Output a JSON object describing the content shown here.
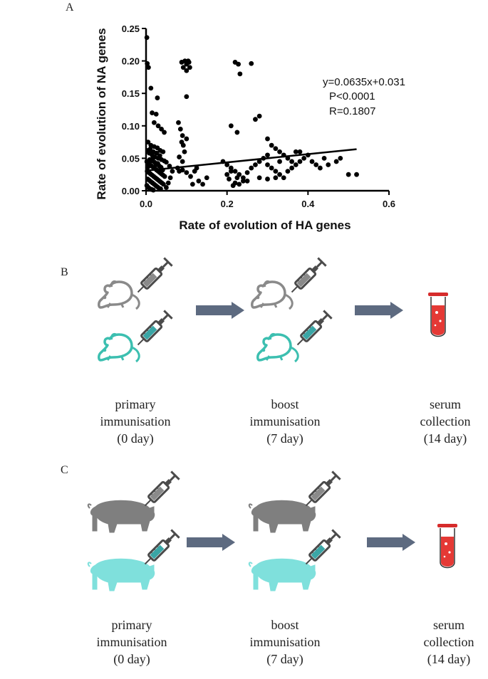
{
  "panels": {
    "a_label": "A",
    "b_label": "B",
    "c_label": "C"
  },
  "chart_data": {
    "type": "scatter",
    "xlabel": "Rate of evolution of HA genes",
    "ylabel": "Rate of evolution of NA genes",
    "xlim": [
      0,
      0.6
    ],
    "ylim": [
      0,
      0.25
    ],
    "xticks": [
      "0.0",
      "0.2",
      "0.4",
      "0.6"
    ],
    "yticks": [
      "0.00",
      "0.05",
      "0.10",
      "0.15",
      "0.20",
      "0.25"
    ],
    "xtick_values": [
      0,
      0.2,
      0.4,
      0.6
    ],
    "ytick_values": [
      0,
      0.05,
      0.1,
      0.15,
      0.2,
      0.25
    ],
    "regression": {
      "slope": 0.0635,
      "intercept": 0.031,
      "x_range": [
        0,
        0.52
      ]
    },
    "annotation": [
      "y=0.0635x+0.031",
      "P<0.0001",
      "R=0.1807"
    ],
    "points": [
      [
        0.002,
        0.236
      ],
      [
        0.003,
        0.196
      ],
      [
        0.006,
        0.19
      ],
      [
        0.012,
        0.158
      ],
      [
        0.028,
        0.143
      ],
      [
        0.015,
        0.12
      ],
      [
        0.025,
        0.118
      ],
      [
        0.02,
        0.105
      ],
      [
        0.03,
        0.1
      ],
      [
        0.038,
        0.095
      ],
      [
        0.045,
        0.09
      ],
      [
        0.005,
        0.075
      ],
      [
        0.012,
        0.07
      ],
      [
        0.02,
        0.068
      ],
      [
        0.028,
        0.066
      ],
      [
        0.035,
        0.062
      ],
      [
        0.042,
        0.06
      ],
      [
        0.008,
        0.058
      ],
      [
        0.015,
        0.055
      ],
      [
        0.022,
        0.052
      ],
      [
        0.03,
        0.05
      ],
      [
        0.038,
        0.048
      ],
      [
        0.045,
        0.046
      ],
      [
        0.05,
        0.044
      ],
      [
        0.002,
        0.045
      ],
      [
        0.006,
        0.042
      ],
      [
        0.01,
        0.04
      ],
      [
        0.014,
        0.038
      ],
      [
        0.018,
        0.036
      ],
      [
        0.022,
        0.034
      ],
      [
        0.026,
        0.032
      ],
      [
        0.03,
        0.03
      ],
      [
        0.034,
        0.028
      ],
      [
        0.038,
        0.026
      ],
      [
        0.042,
        0.024
      ],
      [
        0.046,
        0.022
      ],
      [
        0.003,
        0.03
      ],
      [
        0.007,
        0.028
      ],
      [
        0.011,
        0.026
      ],
      [
        0.015,
        0.024
      ],
      [
        0.019,
        0.022
      ],
      [
        0.023,
        0.02
      ],
      [
        0.027,
        0.018
      ],
      [
        0.031,
        0.016
      ],
      [
        0.035,
        0.014
      ],
      [
        0.039,
        0.012
      ],
      [
        0.043,
        0.01
      ],
      [
        0.004,
        0.018
      ],
      [
        0.008,
        0.016
      ],
      [
        0.012,
        0.014
      ],
      [
        0.016,
        0.012
      ],
      [
        0.02,
        0.01
      ],
      [
        0.024,
        0.008
      ],
      [
        0.028,
        0.006
      ],
      [
        0.032,
        0.004
      ],
      [
        0.036,
        0.003
      ],
      [
        0.002,
        0.008
      ],
      [
        0.006,
        0.005
      ],
      [
        0.01,
        0.003
      ],
      [
        0.014,
        0.002
      ],
      [
        0.018,
        0.001
      ],
      [
        0.05,
        0.005
      ],
      [
        0.055,
        0.012
      ],
      [
        0.06,
        0.02
      ],
      [
        0.065,
        0.03
      ],
      [
        0.058,
        0.038
      ],
      [
        0.004,
        0.036
      ],
      [
        0.009,
        0.048
      ],
      [
        0.013,
        0.046
      ],
      [
        0.017,
        0.05
      ],
      [
        0.021,
        0.044
      ],
      [
        0.025,
        0.04
      ],
      [
        0.029,
        0.042
      ],
      [
        0.033,
        0.038
      ],
      [
        0.037,
        0.036
      ],
      [
        0.041,
        0.032
      ],
      [
        0.005,
        0.062
      ],
      [
        0.01,
        0.064
      ],
      [
        0.018,
        0.06
      ],
      [
        0.026,
        0.058
      ],
      [
        0.034,
        0.054
      ],
      [
        0.08,
        0.105
      ],
      [
        0.085,
        0.095
      ],
      [
        0.09,
        0.085
      ],
      [
        0.088,
        0.075
      ],
      [
        0.092,
        0.07
      ],
      [
        0.095,
        0.06
      ],
      [
        0.082,
        0.052
      ],
      [
        0.1,
        0.08
      ],
      [
        0.09,
        0.045
      ],
      [
        0.088,
        0.198
      ],
      [
        0.092,
        0.19
      ],
      [
        0.096,
        0.2
      ],
      [
        0.1,
        0.195
      ],
      [
        0.104,
        0.2
      ],
      [
        0.108,
        0.19
      ],
      [
        0.1,
        0.185
      ],
      [
        0.106,
        0.198
      ],
      [
        0.1,
        0.145
      ],
      [
        0.078,
        0.035
      ],
      [
        0.082,
        0.03
      ],
      [
        0.09,
        0.032
      ],
      [
        0.1,
        0.028
      ],
      [
        0.11,
        0.022
      ],
      [
        0.12,
        0.03
      ],
      [
        0.125,
        0.035
      ],
      [
        0.13,
        0.015
      ],
      [
        0.115,
        0.01
      ],
      [
        0.15,
        0.02
      ],
      [
        0.14,
        0.01
      ],
      [
        0.22,
        0.198
      ],
      [
        0.228,
        0.195
      ],
      [
        0.26,
        0.196
      ],
      [
        0.232,
        0.18
      ],
      [
        0.21,
        0.1
      ],
      [
        0.225,
        0.09
      ],
      [
        0.27,
        0.11
      ],
      [
        0.28,
        0.115
      ],
      [
        0.3,
        0.08
      ],
      [
        0.31,
        0.07
      ],
      [
        0.32,
        0.065
      ],
      [
        0.33,
        0.06
      ],
      [
        0.19,
        0.045
      ],
      [
        0.2,
        0.04
      ],
      [
        0.21,
        0.035
      ],
      [
        0.22,
        0.03
      ],
      [
        0.23,
        0.025
      ],
      [
        0.24,
        0.02
      ],
      [
        0.25,
        0.028
      ],
      [
        0.26,
        0.035
      ],
      [
        0.27,
        0.04
      ],
      [
        0.28,
        0.045
      ],
      [
        0.29,
        0.05
      ],
      [
        0.3,
        0.04
      ],
      [
        0.31,
        0.035
      ],
      [
        0.32,
        0.03
      ],
      [
        0.33,
        0.025
      ],
      [
        0.34,
        0.02
      ],
      [
        0.35,
        0.03
      ],
      [
        0.36,
        0.035
      ],
      [
        0.37,
        0.04
      ],
      [
        0.38,
        0.045
      ],
      [
        0.39,
        0.05
      ],
      [
        0.4,
        0.055
      ],
      [
        0.41,
        0.045
      ],
      [
        0.42,
        0.04
      ],
      [
        0.43,
        0.035
      ],
      [
        0.22,
        0.012
      ],
      [
        0.225,
        0.02
      ],
      [
        0.205,
        0.018
      ],
      [
        0.215,
        0.008
      ],
      [
        0.23,
        0.01
      ],
      [
        0.24,
        0.015
      ],
      [
        0.28,
        0.02
      ],
      [
        0.3,
        0.018
      ],
      [
        0.32,
        0.02
      ],
      [
        0.35,
        0.05
      ],
      [
        0.34,
        0.055
      ],
      [
        0.36,
        0.045
      ],
      [
        0.33,
        0.045
      ],
      [
        0.3,
        0.055
      ],
      [
        0.44,
        0.05
      ],
      [
        0.45,
        0.04
      ],
      [
        0.47,
        0.045
      ],
      [
        0.48,
        0.05
      ],
      [
        0.5,
        0.025
      ],
      [
        0.52,
        0.025
      ],
      [
        0.38,
        0.06
      ],
      [
        0.37,
        0.06
      ],
      [
        0.2,
        0.025
      ],
      [
        0.21,
        0.03
      ],
      [
        0.25,
        0.015
      ]
    ]
  },
  "panel_b": {
    "steps": [
      {
        "line1": "primary",
        "line2": "immunisation",
        "line3": "(0 day)"
      },
      {
        "line1": "boost",
        "line2": "immunisation",
        "line3": "(7 day)"
      },
      {
        "line1": "serum",
        "line2": "collection",
        "line3": "(14 day)"
      }
    ]
  },
  "panel_c": {
    "steps": [
      {
        "line1": "primary",
        "line2": "immunisation",
        "line3": "(0 day)"
      },
      {
        "line1": "boost",
        "line2": "immunisation",
        "line3": "(7 day)"
      },
      {
        "line1": "serum",
        "line2": "collection",
        "line3": "(14 day)"
      }
    ]
  },
  "colors": {
    "gray_animal": "#8a8a8a",
    "teal_animal": "#3cbfb0",
    "pig_gray": "#7f7f7f",
    "pig_teal": "#7fe0dc",
    "arrow": "#5d6a80",
    "syringe_body": "#4b4b4b",
    "syringe_teal_fill": "#3aa6a6",
    "tube_cap": "#d62b2b",
    "tube_blood": "#e53935"
  }
}
